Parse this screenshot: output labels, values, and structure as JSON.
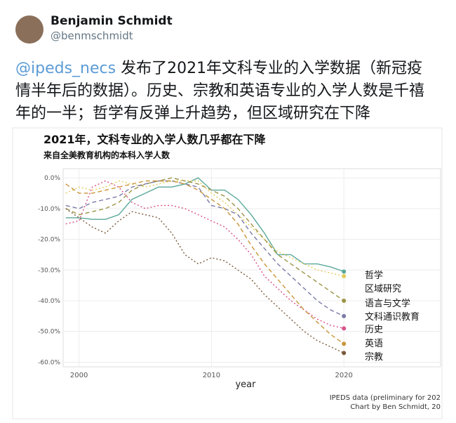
{
  "tweet": {
    "name": "Benjamin Schmidt",
    "handle": "@benmschmidt",
    "mention": "@ipeds_necs",
    "text": " 发布了2021年文科专业的入学数据（新冠疫情半年后的数据）。历史、宗教和英语专业的入学人数是千禧年的一半；哲学有反弹上升趋势，但区域研究在下降"
  },
  "chart_data": {
    "type": "line",
    "title": "2021年，文科专业的入学人数几乎都在下降",
    "subtitle": "来自全美教育机构的本科入学人数",
    "x_label": "year",
    "caption": [
      "IPEDS data (preliminary for 202",
      "Chart by Ben Schmidt, 20"
    ],
    "x": [
      1999,
      2000,
      2001,
      2002,
      2003,
      2004,
      2005,
      2006,
      2007,
      2008,
      2009,
      2010,
      2011,
      2012,
      2013,
      2014,
      2015,
      2016,
      2017,
      2018,
      2019,
      2020
    ],
    "xlim": [
      1998.8,
      2027.3
    ],
    "xticks": [
      2000,
      2010,
      2020
    ],
    "ylim": [
      -61.5,
      3
    ],
    "yticks": [
      {
        "value": 0,
        "label": "0.0%"
      },
      {
        "value": -10,
        "label": "-10.0%"
      },
      {
        "value": -20,
        "label": "-20.0%"
      },
      {
        "value": -30,
        "label": "-30.0%"
      },
      {
        "value": -40,
        "label": "-40.0%"
      },
      {
        "value": -50,
        "label": "-50.0%"
      },
      {
        "value": -60,
        "label": "-60.0%"
      }
    ],
    "grid": true,
    "series": [
      {
        "name": "哲学",
        "color": "#5aa89a",
        "style": "solid",
        "values": [
          -13,
          -13,
          -13.5,
          -13.5,
          -12,
          -7,
          -5,
          -3,
          -3,
          -2,
          0,
          -4,
          -4,
          -7,
          -12,
          -18,
          -25,
          -25,
          -28,
          -28,
          -29,
          -30.5
        ]
      },
      {
        "name": "区域研究",
        "color": "#e3cc5c",
        "style": "dotted",
        "values": [
          -5,
          -3,
          -4,
          -3,
          -1,
          -2,
          -3,
          -2,
          -1,
          -1,
          -1,
          -5,
          -8,
          -12,
          -16,
          -20,
          -24,
          -26,
          -28,
          -30,
          -31,
          -32
        ]
      },
      {
        "name": "语言与文学",
        "color": "#9c9446",
        "style": "dashed",
        "values": [
          -10,
          -12,
          -11,
          -10,
          -8,
          -4,
          -2,
          -1,
          0,
          -1,
          -2,
          -4,
          -6,
          -10,
          -15,
          -20,
          -25,
          -28,
          -31,
          -34,
          -37,
          -40
        ]
      },
      {
        "name": "文科通识教育",
        "color": "#7b7ba8",
        "style": "dashed",
        "values": [
          -9,
          -10,
          -8,
          -7,
          -6,
          -3,
          -2,
          -1,
          -1,
          -2,
          -3,
          -9,
          -10,
          -12,
          -18,
          -23,
          -28,
          -32,
          -36,
          -40,
          -43,
          -45
        ]
      },
      {
        "name": "历史",
        "color": "#d8508a",
        "style": "dotted",
        "values": [
          -15,
          -14,
          -3,
          -1,
          -3,
          -8,
          -10,
          -9,
          -9,
          -10,
          -12,
          -14,
          -16,
          -20,
          -25,
          -32,
          -36,
          -40,
          -43,
          -46,
          -48,
          -49
        ]
      },
      {
        "name": "英语",
        "color": "#c8963a",
        "style": "dashed",
        "values": [
          -2,
          -5,
          -5,
          -4,
          -3,
          -2,
          -1,
          -1,
          -1,
          -2,
          -4,
          -7,
          -10,
          -15,
          -22,
          -28,
          -33,
          -38,
          -43,
          -47,
          -51,
          -54
        ]
      },
      {
        "name": "宗教",
        "color": "#7a5a3a",
        "style": "dotted",
        "values": [
          -10,
          -13,
          -16,
          -18,
          -14,
          -11,
          -12,
          -13,
          -18,
          -25,
          -28,
          -26,
          -27,
          -30,
          -33,
          -38,
          -42,
          -46,
          -50,
          -53,
          -55,
          -57
        ]
      }
    ]
  }
}
